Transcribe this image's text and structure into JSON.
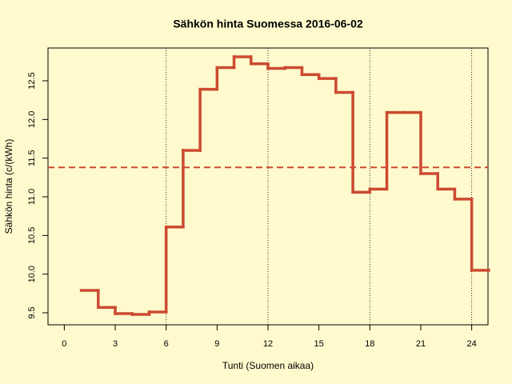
{
  "chart_data": {
    "type": "step",
    "title": "Sähkön hinta Suomessa 2016-06-02",
    "xlabel": "Tunti (Suomen aikaa)",
    "ylabel": "Sähkön hinta (c/(kWh)",
    "x": [
      1,
      2,
      3,
      4,
      5,
      6,
      7,
      8,
      9,
      10,
      11,
      12,
      13,
      14,
      15,
      16,
      17,
      18,
      19,
      20,
      21,
      22,
      23,
      24,
      25
    ],
    "values": [
      9.79,
      9.57,
      9.49,
      9.48,
      9.51,
      10.61,
      11.6,
      12.39,
      12.67,
      12.81,
      12.72,
      12.66,
      12.67,
      12.58,
      12.53,
      12.35,
      11.06,
      11.1,
      12.09,
      12.09,
      11.3,
      11.1,
      10.97,
      10.05,
      10.05
    ],
    "color": "#cc4a30",
    "mean_line": 11.38,
    "vlines": [
      6,
      12,
      18,
      24
    ],
    "xlim": [
      -0.96,
      24.96
    ],
    "ylim": [
      9.345,
      12.924
    ],
    "xticks": [
      0,
      3,
      6,
      9,
      12,
      15,
      18,
      21,
      24
    ],
    "yticks": [
      9.5,
      {
        "value": 10,
        "label": "10.0"
      },
      10.5,
      {
        "value": 11,
        "label": "11.0"
      },
      11.5,
      {
        "value": 12,
        "label": "12.0"
      },
      12.5
    ]
  }
}
